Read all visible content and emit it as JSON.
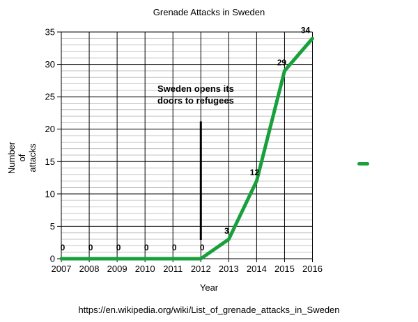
{
  "title": "Grenade Attacks in Sweden",
  "y_axis_label": "Number\nof\nattacks",
  "x_axis_label": "Year",
  "caption": "https://en.wikipedia.org/wiki/List_of_grenade_attacks_in_Sweden",
  "annotation": {
    "line1": "Sweden opens its",
    "line2": "doors to refugees"
  },
  "legend": {
    "marker": "series-line-dash",
    "color": "#18a03c",
    "position": "right"
  },
  "chart_data": {
    "type": "line",
    "title": "Grenade Attacks in Sweden",
    "xlabel": "Year",
    "ylabel": "Number of attacks",
    "x": [
      2007,
      2008,
      2009,
      2010,
      2011,
      2012,
      2013,
      2014,
      2015,
      2016
    ],
    "values": [
      0,
      0,
      0,
      0,
      0,
      0,
      3,
      12,
      29,
      34
    ],
    "data_labels": [
      "0",
      "0",
      "0",
      "0",
      "0",
      "0",
      "3",
      "12",
      "29",
      "34"
    ],
    "series_color": "#18a03c",
    "line_width": 5,
    "ylim": [
      0,
      35
    ],
    "y_major_ticks": [
      0,
      5,
      10,
      15,
      20,
      25,
      30,
      35
    ],
    "y_minor_step": 1,
    "grid": "horizontal major+minor, vertical per year",
    "gridline_major_color": "#000000",
    "gridline_minor_color": "#c3c3c3",
    "annotation_vline": {
      "x": 2012,
      "y_from": 2.9,
      "y_to": 21.2
    }
  }
}
